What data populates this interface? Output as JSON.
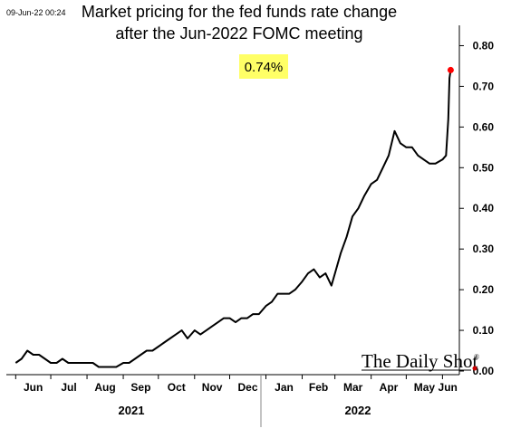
{
  "timestamp": "09-Jun-22 00:24",
  "logo": {
    "text": "The Daily Shot",
    "mark": "®"
  },
  "chart_data": {
    "type": "line",
    "title": [
      "Market pricing for the fed funds rate change",
      "after the Jun-2022 FOMC meeting"
    ],
    "callout": {
      "text": "0.74%",
      "color": "#ffff66"
    },
    "line_color": "#000000",
    "endpoint_color": "#ff0000",
    "ylim": [
      0,
      0.85
    ],
    "yticks": [
      "0.00",
      "0.10",
      "0.20",
      "0.30",
      "0.40",
      "0.50",
      "0.60",
      "0.70",
      "0.80"
    ],
    "ytick_values": [
      0,
      0.1,
      0.2,
      0.3,
      0.4,
      0.5,
      0.6,
      0.7,
      0.8
    ],
    "x_months": [
      "Jun",
      "Jul",
      "Aug",
      "Sep",
      "Oct",
      "Nov",
      "Dec",
      "Jan",
      "Feb",
      "Mar",
      "Apr",
      "May",
      "Jun"
    ],
    "x_years": [
      "2021",
      "2022"
    ],
    "grid": false,
    "y_axis_side": "right",
    "x": [
      "2021-06-01",
      "2021-06-06",
      "2021-06-11",
      "2021-06-16",
      "2021-06-21",
      "2021-06-26",
      "2021-07-01",
      "2021-07-06",
      "2021-07-11",
      "2021-07-16",
      "2021-07-21",
      "2021-07-26",
      "2021-08-01",
      "2021-08-06",
      "2021-08-11",
      "2021-08-16",
      "2021-08-21",
      "2021-08-26",
      "2021-09-01",
      "2021-09-06",
      "2021-09-11",
      "2021-09-16",
      "2021-09-21",
      "2021-09-26",
      "2021-10-01",
      "2021-10-06",
      "2021-10-11",
      "2021-10-16",
      "2021-10-21",
      "2021-10-26",
      "2021-11-01",
      "2021-11-06",
      "2021-11-11",
      "2021-11-16",
      "2021-11-21",
      "2021-11-26",
      "2021-12-01",
      "2021-12-06",
      "2021-12-11",
      "2021-12-16",
      "2021-12-21",
      "2021-12-26",
      "2022-01-01",
      "2022-01-06",
      "2022-01-11",
      "2022-01-16",
      "2022-01-21",
      "2022-01-26",
      "2022-02-01",
      "2022-02-06",
      "2022-02-11",
      "2022-02-16",
      "2022-02-21",
      "2022-02-26",
      "2022-03-01",
      "2022-03-06",
      "2022-03-11",
      "2022-03-16",
      "2022-03-21",
      "2022-03-26",
      "2022-04-01",
      "2022-04-06",
      "2022-04-11",
      "2022-04-16",
      "2022-04-21",
      "2022-04-26",
      "2022-05-01",
      "2022-05-06",
      "2022-05-11",
      "2022-05-16",
      "2022-05-21",
      "2022-05-26",
      "2022-06-01",
      "2022-06-04",
      "2022-06-06",
      "2022-06-07",
      "2022-06-08"
    ],
    "values": [
      0.02,
      0.03,
      0.05,
      0.04,
      0.04,
      0.03,
      0.02,
      0.02,
      0.03,
      0.02,
      0.02,
      0.02,
      0.02,
      0.02,
      0.01,
      0.01,
      0.01,
      0.01,
      0.02,
      0.02,
      0.03,
      0.04,
      0.05,
      0.05,
      0.06,
      0.07,
      0.08,
      0.09,
      0.1,
      0.08,
      0.1,
      0.09,
      0.1,
      0.11,
      0.12,
      0.13,
      0.13,
      0.12,
      0.13,
      0.13,
      0.14,
      0.14,
      0.16,
      0.17,
      0.19,
      0.19,
      0.19,
      0.2,
      0.22,
      0.24,
      0.25,
      0.23,
      0.24,
      0.21,
      0.24,
      0.29,
      0.33,
      0.38,
      0.4,
      0.43,
      0.46,
      0.47,
      0.5,
      0.53,
      0.59,
      0.56,
      0.55,
      0.55,
      0.53,
      0.52,
      0.51,
      0.51,
      0.52,
      0.53,
      0.62,
      0.72,
      0.74
    ]
  }
}
